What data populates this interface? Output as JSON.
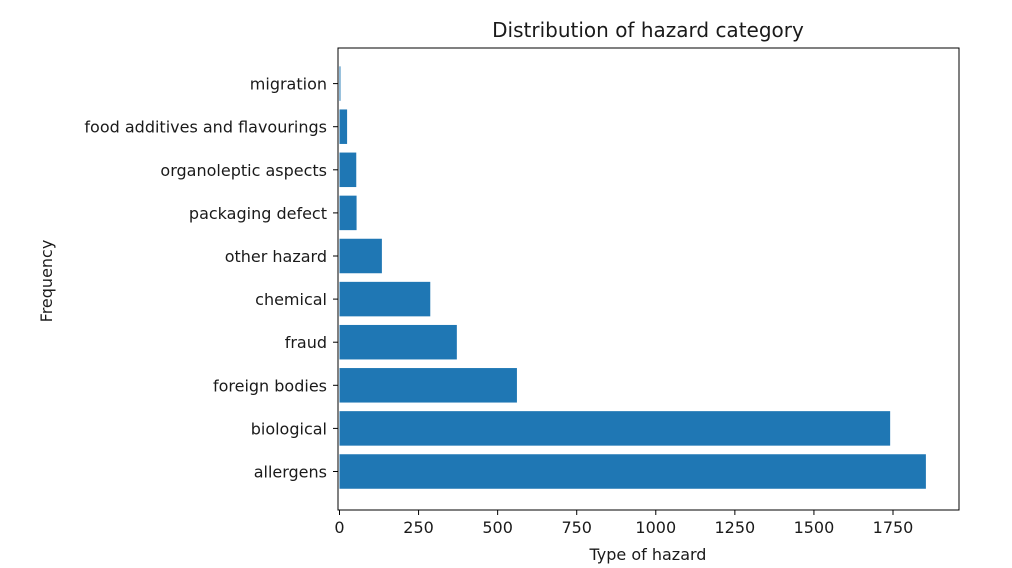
{
  "chart_data": {
    "type": "bar",
    "orientation": "horizontal",
    "title": "Distribution of hazard category",
    "xlabel": "Type of hazard",
    "ylabel": "Frequency",
    "categories": [
      "allergens",
      "biological",
      "foreign bodies",
      "fraud",
      "chemical",
      "other hazard",
      "packaging defect",
      "organoleptic aspects",
      "food additives and flavourings",
      "migration"
    ],
    "values": [
      1854,
      1741,
      561,
      371,
      287,
      134,
      54,
      53,
      24,
      3
    ],
    "xlim": [
      0,
      1950
    ],
    "xticks": [
      0,
      250,
      500,
      750,
      1000,
      1250,
      1500,
      1750
    ],
    "grid": false,
    "bar_color": "#1f77b4"
  }
}
